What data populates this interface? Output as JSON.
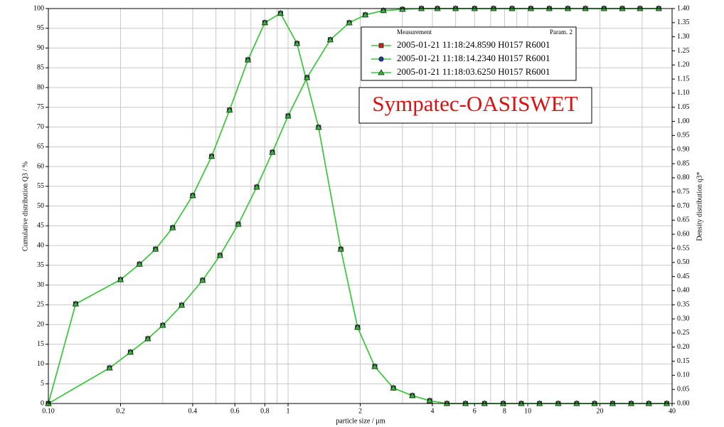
{
  "chart_data": {
    "type": "line",
    "xlabel": "particle size / µm",
    "ylabel": "Cumulative distribution Q3 / %",
    "y2label": "Density distribution q3*",
    "watermark": "Sympatec-OASISWET",
    "legend_header": "Measurement",
    "legend_param": "Param. 2",
    "xscale": "log",
    "xlim": [
      0.1,
      40
    ],
    "xticks": [
      {
        "value": 0.1,
        "label": "0.10"
      },
      0.2,
      0.4,
      0.6,
      0.8,
      1,
      2,
      4,
      6,
      8,
      10,
      20,
      40
    ],
    "xminorticks": [
      0.3,
      0.5,
      0.7,
      0.9,
      3,
      5,
      7,
      9,
      30
    ],
    "ylim": [
      0,
      100
    ],
    "yticks": [
      0,
      5,
      10,
      15,
      20,
      25,
      30,
      35,
      40,
      45,
      50,
      55,
      60,
      65,
      70,
      75,
      80,
      85,
      90,
      95,
      100
    ],
    "y2lim": [
      0,
      1.4
    ],
    "y2ticks": [
      {
        "value": 0,
        "label": "0.00"
      },
      0.05,
      {
        "value": 0.1,
        "label": "0.10"
      },
      0.15,
      {
        "value": 0.2,
        "label": "0.20"
      },
      0.25,
      {
        "value": 0.3,
        "label": "0.30"
      },
      0.35,
      {
        "value": 0.4,
        "label": "0.40"
      },
      0.45,
      {
        "value": 0.5,
        "label": "0.50"
      },
      0.55,
      {
        "value": 0.6,
        "label": "0.60"
      },
      0.65,
      {
        "value": 0.7,
        "label": "0.70"
      },
      0.75,
      {
        "value": 0.8,
        "label": "0.80"
      },
      0.85,
      {
        "value": 0.9,
        "label": "0.90"
      },
      0.95,
      {
        "value": 1,
        "label": "1.00"
      },
      1.05,
      {
        "value": 1.1,
        "label": "1.10"
      },
      1.15,
      {
        "value": 1.2,
        "label": "1.20"
      },
      1.25,
      {
        "value": 1.3,
        "label": "1.30"
      },
      1.35,
      {
        "value": 1.4,
        "label": "1.40"
      }
    ],
    "grid": true,
    "line_color": "#3cc83c",
    "x": [
      0.1,
      0.18,
      0.22,
      0.26,
      0.3,
      0.36,
      0.44,
      0.52,
      0.62,
      0.74,
      0.86,
      1.0,
      1.2,
      1.5,
      1.8,
      2.1,
      2.5,
      3.0,
      3.6,
      4.2,
      5.0,
      6.0,
      7.2,
      8.6,
      10.3,
      12.3,
      14.7,
      17.4,
      20.8,
      24.8,
      29.4,
      35.2
    ],
    "x_density": [
      0.1,
      0.13,
      0.2,
      0.24,
      0.28,
      0.33,
      0.4,
      0.48,
      0.57,
      0.68,
      0.8,
      0.93,
      1.09,
      1.34,
      1.66,
      1.95,
      2.3,
      2.75,
      3.3,
      3.9,
      4.6,
      5.5,
      6.6,
      7.9,
      9.4,
      11.2,
      13.4,
      16.0,
      19.0,
      22.6,
      27.0,
      32.0,
      38.0
    ],
    "series": [
      {
        "name": "2005-01-21 11:18:24.8590 H0157 R6001",
        "color": "#cc2222",
        "marker": "square",
        "values": [
          0,
          9.0,
          13.0,
          16.4,
          19.8,
          24.9,
          31.2,
          37.5,
          45.4,
          54.8,
          63.6,
          72.8,
          82.5,
          92.1,
          96.4,
          98.4,
          99.5,
          99.8,
          100,
          100,
          100,
          100,
          100,
          100,
          100,
          100,
          100,
          100,
          100,
          100,
          100,
          100
        ],
        "density_values": [
          0,
          0.353,
          0.439,
          0.494,
          0.547,
          0.623,
          0.737,
          0.876,
          1.04,
          1.218,
          1.35,
          1.383,
          1.276,
          0.979,
          0.547,
          0.27,
          0.131,
          0.055,
          0.028,
          0.01,
          0,
          0,
          0,
          0,
          0,
          0,
          0,
          0,
          0,
          0,
          0,
          0,
          0
        ]
      },
      {
        "name": "2005-01-21 11:18:14.2340 H0157 R6001",
        "color": "#2233aa",
        "marker": "circle",
        "values": [
          0,
          9.0,
          13.0,
          16.4,
          19.8,
          24.9,
          31.2,
          37.5,
          45.4,
          54.8,
          63.6,
          72.8,
          82.5,
          92.1,
          96.4,
          98.4,
          99.5,
          99.8,
          100,
          100,
          100,
          100,
          100,
          100,
          100,
          100,
          100,
          100,
          100,
          100,
          100,
          100
        ],
        "density_values": [
          0,
          0.353,
          0.439,
          0.494,
          0.547,
          0.623,
          0.737,
          0.876,
          1.04,
          1.218,
          1.35,
          1.383,
          1.276,
          0.979,
          0.547,
          0.27,
          0.131,
          0.055,
          0.028,
          0.01,
          0,
          0,
          0,
          0,
          0,
          0,
          0,
          0,
          0,
          0,
          0,
          0,
          0
        ]
      },
      {
        "name": "2005-01-21 11:18:03.6250 H0157 R6001",
        "color": "#33bb33",
        "marker": "triangle",
        "values": [
          0,
          9.0,
          13.0,
          16.4,
          19.8,
          24.9,
          31.2,
          37.5,
          45.4,
          54.8,
          63.6,
          72.8,
          82.5,
          92.1,
          96.4,
          98.4,
          99.5,
          99.8,
          100,
          100,
          100,
          100,
          100,
          100,
          100,
          100,
          100,
          100,
          100,
          100,
          100,
          100
        ],
        "density_values": [
          0,
          0.353,
          0.439,
          0.494,
          0.547,
          0.623,
          0.737,
          0.876,
          1.04,
          1.218,
          1.35,
          1.383,
          1.276,
          0.979,
          0.547,
          0.27,
          0.131,
          0.055,
          0.028,
          0.01,
          0,
          0,
          0,
          0,
          0,
          0,
          0,
          0,
          0,
          0,
          0,
          0,
          0
        ]
      }
    ]
  }
}
